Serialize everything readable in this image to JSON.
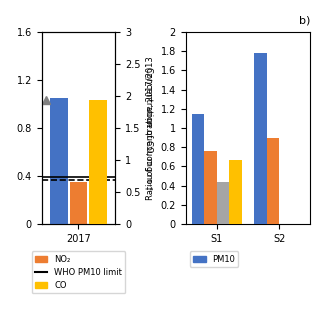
{
  "chart_data": [
    {
      "type": "bar",
      "categories": [
        "2017"
      ],
      "series": [
        {
          "color": "#4472C4",
          "values": [
            1.05
          ]
        },
        {
          "name": "NO₂",
          "color": "#ED7D31",
          "values": [
            0.35
          ]
        },
        {
          "name": "CO",
          "color": "#FFC000",
          "values": [
            1.93
          ],
          "axis": "y2"
        }
      ],
      "hlines": [
        {
          "name": "WHO PM10 limit",
          "value": 0.39,
          "color": "black",
          "line_style": "solid"
        },
        {
          "value": 0.37,
          "color": "black",
          "line_style": "dashed"
        }
      ],
      "points": [
        {
          "y": 1.03,
          "marker": "triangle",
          "color": "gray"
        }
      ],
      "ylim": [
        0,
        1.6
      ],
      "yticks": [
        0,
        0.4,
        0.8,
        1.2,
        1.6
      ],
      "y2label": "Concentration of CO, mg m⁻³",
      "y2lim": [
        0,
        3
      ],
      "y2ticks": [
        0,
        0.5,
        1,
        1.5,
        2,
        2.5,
        3
      ],
      "legend": "upper center"
    },
    {
      "type": "bar",
      "title": "b)",
      "categories": [
        "S1",
        "S2"
      ],
      "series": [
        {
          "name": "PM10",
          "color": "#4472C4",
          "values": [
            1.15,
            1.78
          ]
        },
        {
          "color": "#ED7D31",
          "values": [
            0.76,
            0.9
          ]
        },
        {
          "color": "#A5A5A5",
          "values": [
            0.44,
            0.0
          ]
        },
        {
          "color": "#FFC000",
          "values": [
            0.67,
            0.0
          ]
        }
      ],
      "ylabel": "Ratio of concentration, 2017/2013",
      "ylim": [
        0,
        2
      ],
      "yticks": [
        0,
        0.2,
        0.4,
        0.6,
        0.8,
        1,
        1.2,
        1.4,
        1.6,
        1.8,
        2
      ],
      "legend": "upper left"
    }
  ]
}
